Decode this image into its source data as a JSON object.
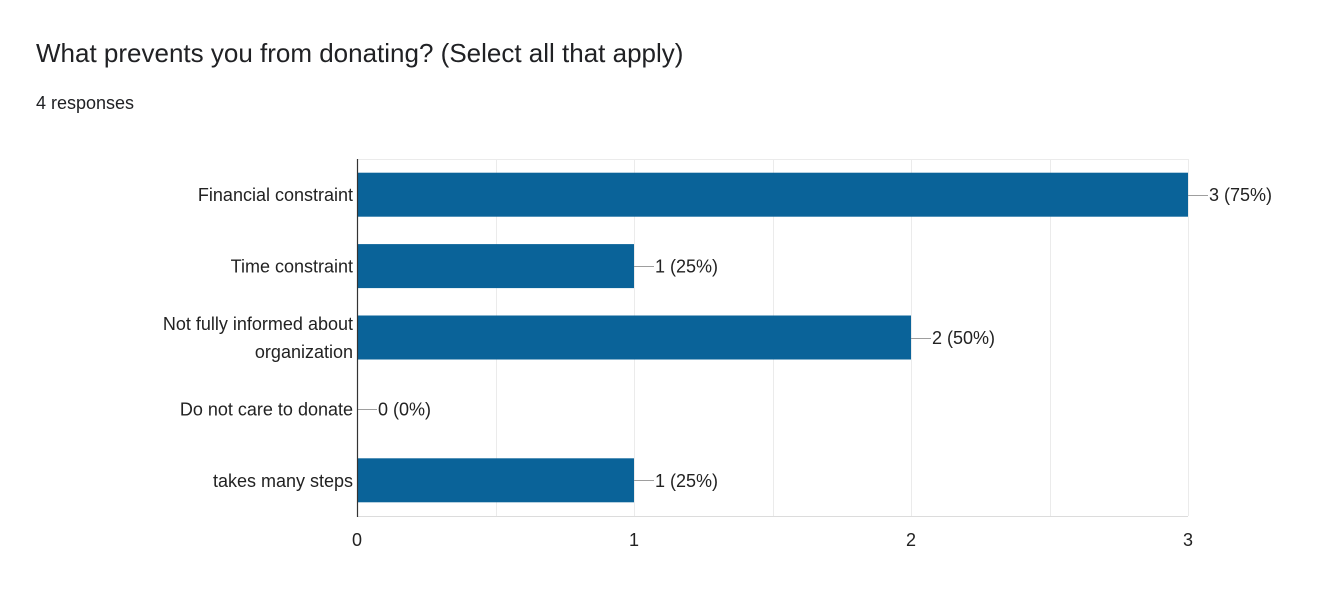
{
  "question": {
    "title": "What prevents you from donating? (Select all that apply)",
    "responses": "4 responses"
  },
  "colors": {
    "bar": "#0a6399",
    "grid": "#ebebeb",
    "axis": "#333333",
    "leader": "#9e9e9e",
    "text": "#222222"
  },
  "chart_data": {
    "type": "bar",
    "orientation": "horizontal",
    "categories": [
      [
        "Financial constraint"
      ],
      [
        "Time constraint"
      ],
      [
        "Not fully informed about",
        "organization"
      ],
      [
        "Do not care to donate"
      ],
      [
        "takes many steps"
      ]
    ],
    "values": [
      3,
      1,
      2,
      0,
      1
    ],
    "data_labels": [
      "3 (75%)",
      "1 (25%)",
      "2 (50%)",
      "0 (0%)",
      "1 (25%)"
    ],
    "xlim": [
      0,
      3
    ],
    "xticks": [
      0,
      1,
      2,
      3
    ],
    "minor_grid_step": 0.5,
    "grid": true,
    "legend": "none"
  }
}
